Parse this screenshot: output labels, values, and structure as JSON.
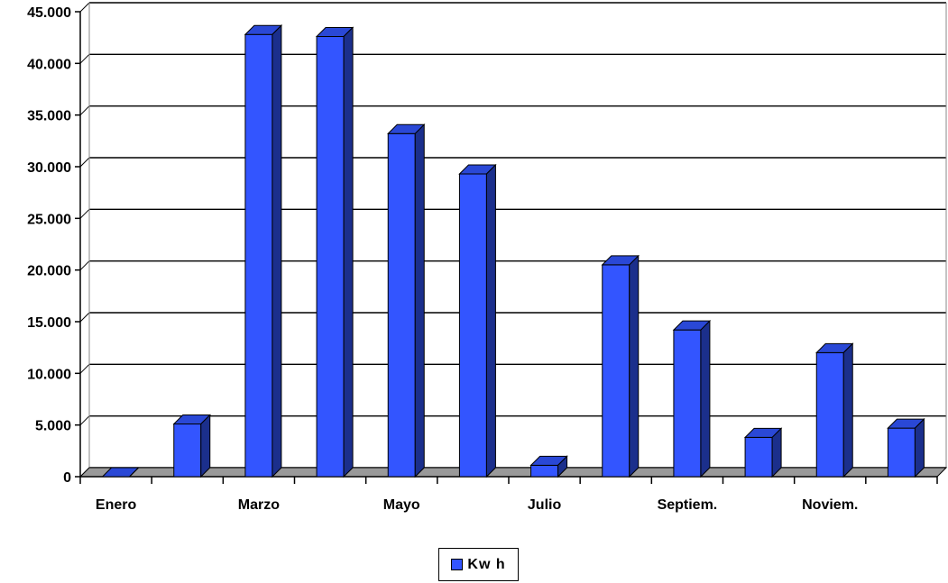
{
  "chart_data": {
    "type": "bar",
    "categories": [
      "Enero",
      "",
      "Marzo",
      "",
      "Mayo",
      "",
      "Julio",
      "",
      "Septiem.",
      "",
      "Noviem.",
      ""
    ],
    "series": [
      {
        "name": "Kw h",
        "values": [
          0,
          5100,
          42800,
          42600,
          33200,
          29300,
          1100,
          20500,
          14200,
          3800,
          12000,
          4700
        ]
      }
    ],
    "ylim": [
      0,
      45000
    ],
    "yticks": [
      "0",
      "5.000",
      "10.000",
      "15.000",
      "20.000",
      "25.000",
      "30.000",
      "35.000",
      "40.000",
      "45.000"
    ],
    "grid": true,
    "legend": "bottom-center",
    "colors": {
      "bar_front": "#3355ff",
      "bar_top": "#2a48d6",
      "bar_side": "#1b2f8c",
      "floor": "#999999"
    }
  }
}
